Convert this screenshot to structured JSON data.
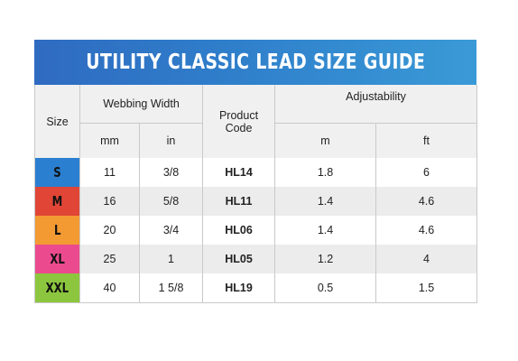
{
  "title": "UTILITY CLASSIC LEAD SIZE GUIDE",
  "headers": {
    "size": "Size",
    "webbing_width": "Webbing Width",
    "product_code_line1": "Product",
    "product_code_line2": "Code",
    "adjustability": "Adjustability",
    "mm": "mm",
    "in": "in",
    "m": "m",
    "ft": "ft"
  },
  "rows": [
    {
      "size": "S",
      "color": "#2b7fd1",
      "mm": "11",
      "in": "3/8",
      "code": "HL14",
      "m": "1.8",
      "ft": "6"
    },
    {
      "size": "M",
      "color": "#e04536",
      "mm": "16",
      "in": "5/8",
      "code": "HL11",
      "m": "1.4",
      "ft": "4.6"
    },
    {
      "size": "L",
      "color": "#f39a33",
      "mm": "20",
      "in": "3/4",
      "code": "HL06",
      "m": "1.4",
      "ft": "4.6"
    },
    {
      "size": "XL",
      "color": "#ec4a8e",
      "mm": "25",
      "in": "1",
      "code": "HL05",
      "m": "1.2",
      "ft": "4"
    },
    {
      "size": "XXL",
      "color": "#8cc63e",
      "mm": "40",
      "in": "1 5/8",
      "code": "HL19",
      "m": "0.5",
      "ft": "1.5"
    }
  ]
}
